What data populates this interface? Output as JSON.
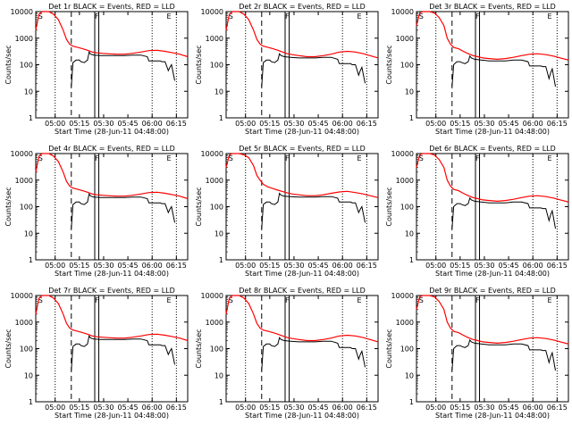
{
  "page": {
    "background": "#ffffff"
  },
  "chart_data": {
    "type": "line",
    "grid": "3x3",
    "xlabel": "Start Time (28-Jun-11 04:48:00)",
    "ylabel": "Counts/sec",
    "ylim": [
      1,
      10000
    ],
    "yscale": "log",
    "y_ticks": [
      "1",
      "10",
      "100",
      "1000",
      "10000"
    ],
    "x_ticks": [
      "05:00",
      "05:15",
      "05:30",
      "05:45",
      "06:00",
      "06:15"
    ],
    "x_unit": "minutes after 04:48:00",
    "x_tick_values": [
      12,
      27,
      42,
      57,
      72,
      87
    ],
    "xlim": [
      0,
      94
    ],
    "colors": {
      "events": "#000000",
      "lld": "#ff0000",
      "marker": "#000000"
    },
    "legend_text": [
      "BLACK = Events, RED = LLD"
    ],
    "panels": [
      {
        "title": "Det 1r BLACK = Events, RED = LLD",
        "letters": [
          "S",
          "F",
          "E"
        ],
        "variant": "A"
      },
      {
        "title": "Det 2r BLACK = Events, RED = LLD",
        "letters": [
          "S",
          "F",
          "E"
        ],
        "variant": "B"
      },
      {
        "title": "Det 3r BLACK = Events, RED = LLD",
        "letters": [
          "S",
          "F",
          "E"
        ],
        "variant": "C"
      },
      {
        "title": "Det 4r BLACK = Events, RED = LLD",
        "letters": [
          "S",
          "F",
          "E"
        ],
        "variant": "A"
      },
      {
        "title": "Det 5r BLACK = Events, RED = LLD",
        "letters": [
          "S",
          "F",
          "E"
        ],
        "variant": "D"
      },
      {
        "title": "Det 6r BLACK = Events, RED = LLD",
        "letters": [
          "S",
          "F",
          "E"
        ],
        "variant": "C"
      },
      {
        "title": "Det 7r BLACK = Events, RED = LLD",
        "letters": [
          "S",
          "F",
          "E"
        ],
        "variant": "A"
      },
      {
        "title": "Det 8r BLACK = Events, RED = LLD",
        "letters": [
          "S",
          "F",
          "E"
        ],
        "variant": "B"
      },
      {
        "title": "Det 9r BLACK = Events, RED = LLD",
        "letters": [
          "S",
          "F",
          "E"
        ],
        "variant": "C"
      }
    ],
    "markers": {
      "dotted_x": [
        12,
        72,
        87
      ],
      "dashed_x": [
        22
      ],
      "solid_x": [
        36.5,
        39
      ],
      "marker_style_note": [
        "dotted",
        "dashed",
        "solid"
      ]
    },
    "series": {
      "A": {
        "lld": [
          [
            0,
            2000
          ],
          [
            2,
            8000
          ],
          [
            4,
            10000
          ],
          [
            8,
            10000
          ],
          [
            11,
            8000
          ],
          [
            14,
            5000
          ],
          [
            17,
            2000
          ],
          [
            19,
            900
          ],
          [
            21,
            600
          ],
          [
            23,
            500
          ],
          [
            26,
            450
          ],
          [
            29,
            400
          ],
          [
            32,
            350
          ],
          [
            35,
            300
          ],
          [
            38,
            280
          ],
          [
            41,
            270
          ],
          [
            45,
            260
          ],
          [
            50,
            250
          ],
          [
            55,
            250
          ],
          [
            60,
            270
          ],
          [
            65,
            300
          ],
          [
            70,
            340
          ],
          [
            75,
            350
          ],
          [
            80,
            320
          ],
          [
            85,
            280
          ],
          [
            89,
            250
          ],
          [
            94,
            200
          ]
        ],
        "events": [
          [
            22,
            15
          ],
          [
            23,
            120
          ],
          [
            25,
            150
          ],
          [
            27,
            150
          ],
          [
            28,
            130
          ],
          [
            30,
            120
          ],
          [
            32,
            150
          ],
          [
            33,
            300
          ],
          [
            34,
            250
          ],
          [
            36,
            230
          ],
          [
            40,
            220
          ],
          [
            45,
            220
          ],
          [
            50,
            220
          ],
          [
            55,
            220
          ],
          [
            60,
            230
          ],
          [
            65,
            230
          ],
          [
            69,
            200
          ],
          [
            70,
            140
          ],
          [
            73,
            140
          ],
          [
            77,
            140
          ],
          [
            78,
            130
          ],
          [
            80,
            130
          ],
          [
            82,
            60
          ],
          [
            83,
            80
          ],
          [
            84,
            100
          ],
          [
            86,
            25
          ]
        ]
      },
      "B": {
        "lld": [
          [
            0,
            2000
          ],
          [
            2,
            8000
          ],
          [
            4,
            10000
          ],
          [
            8,
            10000
          ],
          [
            11,
            8000
          ],
          [
            14,
            5000
          ],
          [
            17,
            2000
          ],
          [
            19,
            900
          ],
          [
            21,
            600
          ],
          [
            23,
            500
          ],
          [
            26,
            450
          ],
          [
            29,
            400
          ],
          [
            32,
            350
          ],
          [
            35,
            300
          ],
          [
            38,
            260
          ],
          [
            41,
            240
          ],
          [
            45,
            220
          ],
          [
            50,
            200
          ],
          [
            55,
            200
          ],
          [
            60,
            220
          ],
          [
            65,
            250
          ],
          [
            70,
            300
          ],
          [
            75,
            320
          ],
          [
            80,
            300
          ],
          [
            85,
            260
          ],
          [
            89,
            220
          ],
          [
            94,
            180
          ]
        ],
        "events": [
          [
            22,
            15
          ],
          [
            23,
            120
          ],
          [
            25,
            150
          ],
          [
            27,
            150
          ],
          [
            28,
            130
          ],
          [
            30,
            120
          ],
          [
            32,
            150
          ],
          [
            33,
            260
          ],
          [
            34,
            220
          ],
          [
            36,
            200
          ],
          [
            40,
            190
          ],
          [
            45,
            180
          ],
          [
            50,
            180
          ],
          [
            55,
            180
          ],
          [
            60,
            190
          ],
          [
            65,
            190
          ],
          [
            69,
            160
          ],
          [
            70,
            110
          ],
          [
            73,
            110
          ],
          [
            77,
            110
          ],
          [
            78,
            100
          ],
          [
            80,
            100
          ],
          [
            82,
            40
          ],
          [
            83,
            60
          ],
          [
            84,
            80
          ],
          [
            86,
            20
          ]
        ]
      },
      "C": {
        "lld": [
          [
            0,
            3000
          ],
          [
            2,
            9000
          ],
          [
            4,
            10000
          ],
          [
            8,
            10000
          ],
          [
            11,
            9000
          ],
          [
            14,
            6000
          ],
          [
            17,
            3000
          ],
          [
            19,
            1000
          ],
          [
            21,
            600
          ],
          [
            23,
            450
          ],
          [
            26,
            400
          ],
          [
            29,
            320
          ],
          [
            32,
            260
          ],
          [
            35,
            220
          ],
          [
            38,
            200
          ],
          [
            41,
            180
          ],
          [
            45,
            170
          ],
          [
            50,
            160
          ],
          [
            55,
            170
          ],
          [
            60,
            190
          ],
          [
            65,
            220
          ],
          [
            70,
            250
          ],
          [
            75,
            260
          ],
          [
            80,
            240
          ],
          [
            85,
            210
          ],
          [
            89,
            180
          ],
          [
            94,
            150
          ]
        ],
        "events": [
          [
            22,
            15
          ],
          [
            23,
            100
          ],
          [
            25,
            130
          ],
          [
            27,
            130
          ],
          [
            28,
            120
          ],
          [
            30,
            110
          ],
          [
            32,
            130
          ],
          [
            33,
            210
          ],
          [
            34,
            180
          ],
          [
            36,
            160
          ],
          [
            40,
            150
          ],
          [
            45,
            140
          ],
          [
            50,
            140
          ],
          [
            55,
            140
          ],
          [
            60,
            150
          ],
          [
            65,
            150
          ],
          [
            69,
            130
          ],
          [
            70,
            90
          ],
          [
            73,
            90
          ],
          [
            77,
            90
          ],
          [
            78,
            85
          ],
          [
            80,
            85
          ],
          [
            82,
            30
          ],
          [
            83,
            50
          ],
          [
            84,
            70
          ],
          [
            86,
            15
          ]
        ]
      },
      "D": {
        "lld": [
          [
            0,
            3000
          ],
          [
            2,
            9000
          ],
          [
            4,
            10000
          ],
          [
            8,
            10000
          ],
          [
            11,
            9000
          ],
          [
            14,
            7000
          ],
          [
            17,
            3500
          ],
          [
            19,
            1500
          ],
          [
            21,
            1000
          ],
          [
            23,
            700
          ],
          [
            26,
            550
          ],
          [
            29,
            480
          ],
          [
            32,
            420
          ],
          [
            35,
            370
          ],
          [
            38,
            330
          ],
          [
            41,
            300
          ],
          [
            45,
            280
          ],
          [
            50,
            260
          ],
          [
            55,
            260
          ],
          [
            60,
            280
          ],
          [
            65,
            320
          ],
          [
            70,
            360
          ],
          [
            75,
            380
          ],
          [
            80,
            340
          ],
          [
            85,
            300
          ],
          [
            89,
            260
          ],
          [
            94,
            220
          ]
        ],
        "events": [
          [
            22,
            15
          ],
          [
            23,
            120
          ],
          [
            25,
            150
          ],
          [
            27,
            150
          ],
          [
            28,
            130
          ],
          [
            30,
            120
          ],
          [
            32,
            150
          ],
          [
            33,
            320
          ],
          [
            34,
            270
          ],
          [
            36,
            250
          ],
          [
            40,
            240
          ],
          [
            45,
            230
          ],
          [
            50,
            230
          ],
          [
            55,
            230
          ],
          [
            60,
            240
          ],
          [
            65,
            240
          ],
          [
            69,
            210
          ],
          [
            70,
            150
          ],
          [
            73,
            150
          ],
          [
            77,
            150
          ],
          [
            78,
            140
          ],
          [
            80,
            140
          ],
          [
            82,
            60
          ],
          [
            83,
            80
          ],
          [
            84,
            100
          ],
          [
            86,
            25
          ]
        ]
      }
    }
  }
}
